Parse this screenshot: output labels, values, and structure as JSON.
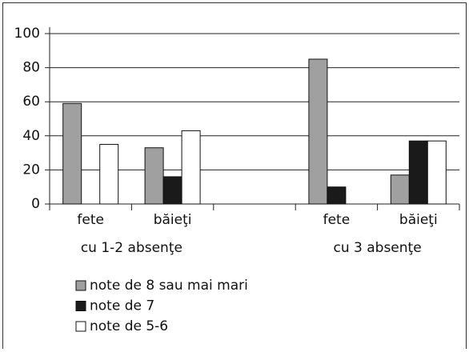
{
  "chart_data": {
    "type": "bar",
    "categories": [
      "fete",
      "băieţi",
      null,
      "fete",
      "băieţi"
    ],
    "group_labels": [
      "cu 1-2 absenţe",
      "cu 3 absenţe"
    ],
    "series": [
      {
        "name": "note de 8 sau mai mari",
        "color": "#a0a0a0",
        "values": [
          59,
          33,
          null,
          85,
          17
        ]
      },
      {
        "name": "note de 7",
        "color": "#1a1a1a",
        "values": [
          0,
          16,
          null,
          10,
          37
        ]
      },
      {
        "name": "note de 5-6",
        "color": "#ffffff",
        "values": [
          35,
          43,
          null,
          0,
          37
        ]
      }
    ],
    "ylim": [
      0,
      100
    ],
    "yticks": [
      0,
      20,
      40,
      60,
      80,
      100
    ],
    "grid": true
  }
}
